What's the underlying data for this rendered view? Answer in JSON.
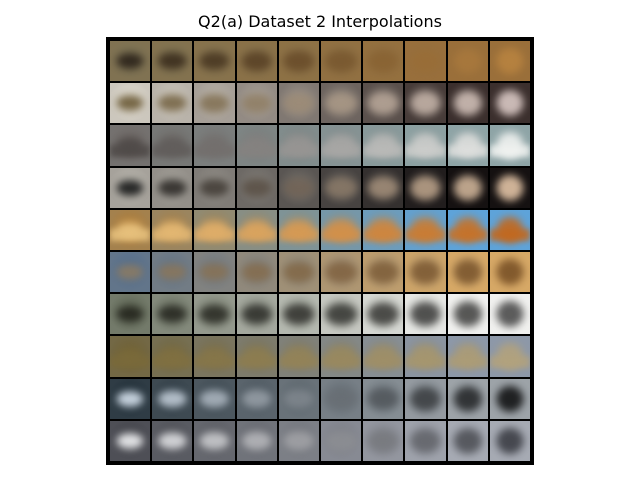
{
  "title": "Q2(a) Dataset 2 Interpolations",
  "grid": {
    "rows": [
      {
        "bg_start": "#7b7356",
        "bg_end": "#9a6f3a",
        "fg_start": "#2b2219",
        "fg_end": "#b88340",
        "motif": "horse-fade"
      },
      {
        "bg_start": "#e6e2d6",
        "bg_end": "#3b2f2d",
        "fg_start": "#6b5a37",
        "fg_end": "#d9c8c4",
        "motif": "animal-to-figure"
      },
      {
        "bg_start": "#6f6865",
        "bg_end": "#8ea4a6",
        "fg_start": "#4f4a48",
        "fg_end": "#f0f2f0",
        "motif": "haze-to-horizon"
      },
      {
        "bg_start": "#bfbcb3",
        "bg_end": "#151111",
        "fg_start": "#171818",
        "fg_end": "#e3c4a6",
        "motif": "dark-to-light-object"
      },
      {
        "bg_start": "#b07b34",
        "bg_end": "#5ea3d9",
        "fg_start": "#e8c27e",
        "fg_end": "#c2681e",
        "motif": "glow-to-landscape"
      },
      {
        "bg_start": "#4e6c90",
        "bg_end": "#d6a866",
        "fg_start": "#8b7b63",
        "fg_end": "#7a5227",
        "motif": "ship-to-ring"
      },
      {
        "bg_start": "#5d6553",
        "bg_end": "#f0f0ee",
        "fg_start": "#24251d",
        "fg_end": "#4c4c4c",
        "motif": "object-to-bird"
      },
      {
        "bg_start": "#6e6034",
        "bg_end": "#8d98a8",
        "fg_start": "#7a6a3a",
        "fg_end": "#b2a27d",
        "motif": "field-to-sea"
      },
      {
        "bg_start": "#1c2a33",
        "bg_end": "#9da3a8",
        "fg_start": "#d6e2ee",
        "fg_end": "#121314",
        "motif": "light-to-plane"
      },
      {
        "bg_start": "#3e3f45",
        "bg_end": "#a6aab3",
        "fg_start": "#f1f2f4",
        "fg_end": "#3c3e45",
        "motif": "bright-to-plane"
      }
    ],
    "columns": 10
  }
}
